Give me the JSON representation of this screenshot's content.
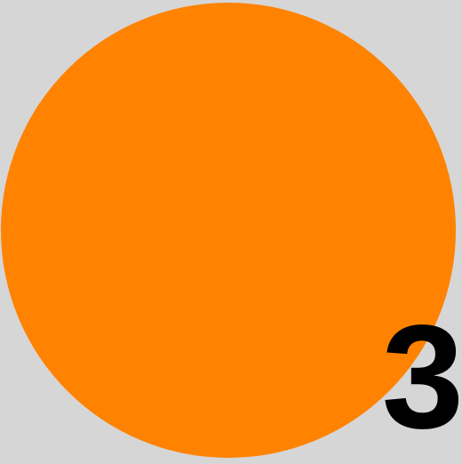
{
  "scene": {
    "background_color": "#d6d6d6",
    "circle_color": "#ff8200",
    "number_color": "#000000",
    "number": "3"
  }
}
